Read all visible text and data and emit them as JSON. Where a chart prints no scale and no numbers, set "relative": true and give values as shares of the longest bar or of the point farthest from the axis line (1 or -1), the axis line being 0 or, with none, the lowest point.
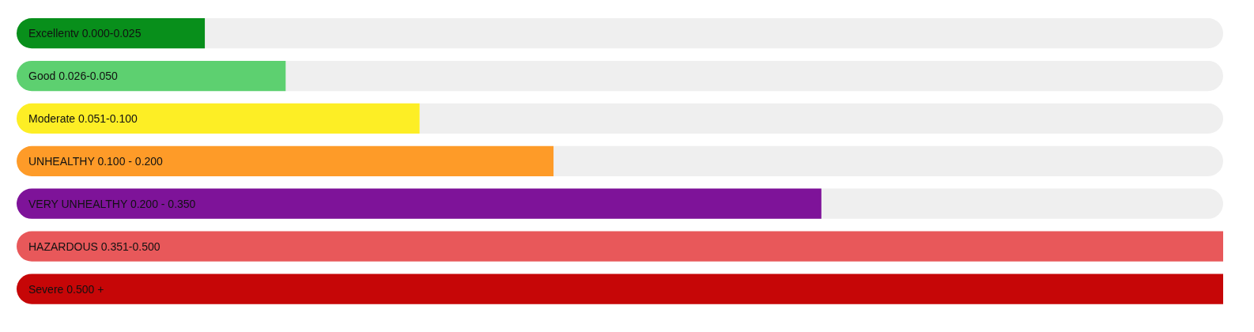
{
  "chart_data": {
    "type": "bar",
    "orientation": "horizontal",
    "relative": true,
    "categories": [
      "Excellentv 0.000-0.025",
      "Good 0.026-0.050",
      "Moderate 0.051-0.100",
      "UNHEALTHY 0.100 - 0.200",
      "VERY UNHEALTHY 0.200 - 0.350",
      "HAZARDOUS 0.351-0.500",
      "Severe 0.500 +"
    ],
    "values": [
      0.156,
      0.223,
      0.334,
      0.445,
      0.667,
      1,
      1
    ],
    "colors": [
      "#088f1b",
      "#5dd070",
      "#fdee25",
      "#fe9b28",
      "#7e1399",
      "#e8585a",
      "#c60607"
    ]
  }
}
